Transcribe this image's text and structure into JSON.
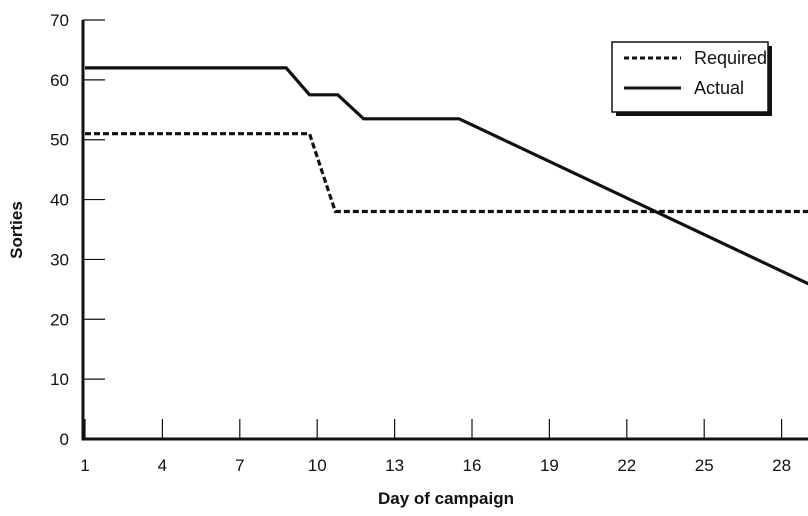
{
  "chart_data": {
    "type": "line",
    "title": "",
    "xlabel": "Day of campaign",
    "ylabel": "Sorties",
    "xlim": [
      1,
      29.5
    ],
    "ylim": [
      0,
      70
    ],
    "x_ticks": [
      1,
      4,
      7,
      10,
      13,
      16,
      19,
      22,
      25,
      28
    ],
    "y_ticks": [
      0,
      10,
      20,
      30,
      40,
      50,
      60,
      70
    ],
    "grid": false,
    "legend_position": "top-right",
    "series": [
      {
        "name": "Required",
        "style": "dashed",
        "color": "#111111",
        "points": [
          [
            1,
            51
          ],
          [
            9.7,
            51
          ],
          [
            10.7,
            38
          ],
          [
            29.5,
            38
          ]
        ]
      },
      {
        "name": "Actual",
        "style": "solid",
        "color": "#111111",
        "points": [
          [
            1,
            62
          ],
          [
            8.8,
            62
          ],
          [
            9.7,
            57.5
          ],
          [
            10.8,
            57.5
          ],
          [
            11.8,
            53.5
          ],
          [
            15.5,
            53.5
          ],
          [
            29.5,
            25
          ]
        ]
      }
    ]
  }
}
